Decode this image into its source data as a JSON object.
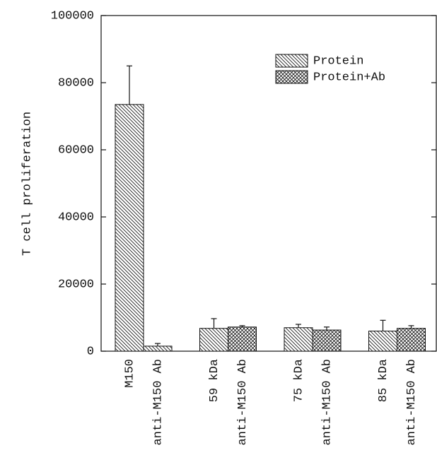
{
  "chart_data": {
    "type": "bar",
    "y_label": "T cell proliferation",
    "categories": [
      "M150",
      "anti-M150 Ab",
      "59 kDa",
      "anti-M150 Ab",
      "75 kDa",
      "anti-M150 Ab",
      "85 kDa",
      "anti-M150 Ab"
    ],
    "series": [
      {
        "name": "Protein",
        "color": "#111111",
        "pattern": "hatch",
        "values": [
          73500,
          1500,
          6800,
          null,
          7000,
          null,
          6000,
          null
        ],
        "errors": [
          11500,
          800,
          2900,
          null,
          1000,
          null,
          3200,
          null
        ]
      },
      {
        "name": "Protein+Ab",
        "color": "#111111",
        "pattern": "crosshatch",
        "values": [
          null,
          null,
          null,
          7200,
          null,
          6300,
          null,
          6800
        ],
        "errors": [
          null,
          null,
          null,
          400,
          null,
          900,
          null,
          800
        ]
      }
    ],
    "ylim": [
      0,
      100000
    ],
    "yticks": [
      0,
      20000,
      40000,
      60000,
      80000,
      100000
    ],
    "legend": "upper right"
  }
}
